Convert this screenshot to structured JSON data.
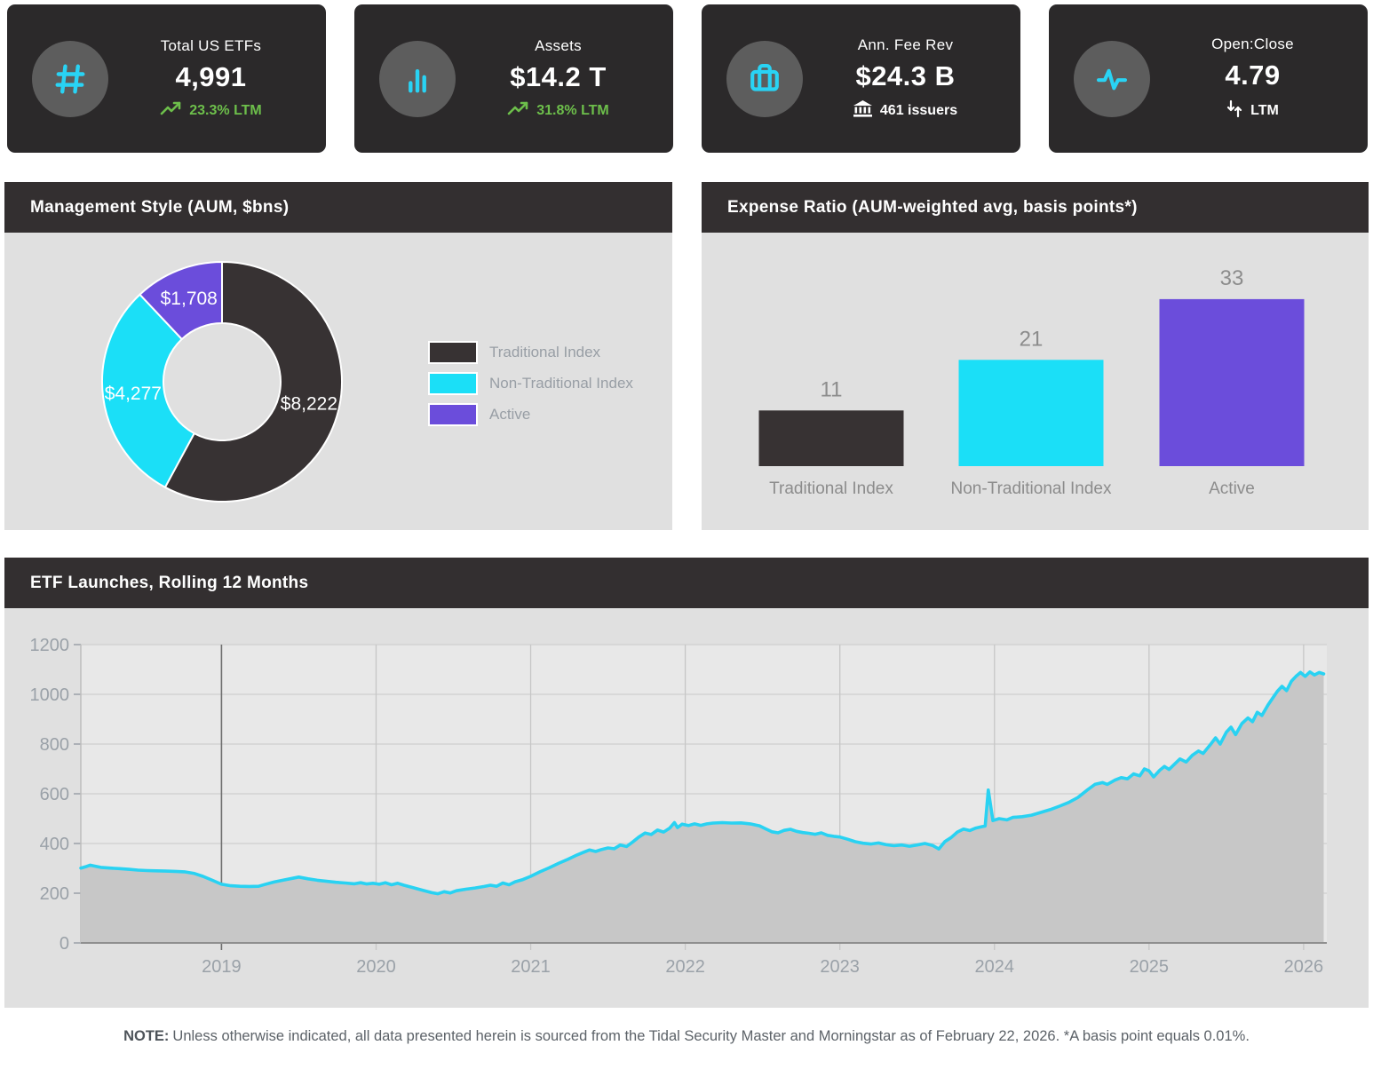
{
  "colors": {
    "card_bg": "#2b292a",
    "icon_circle": "#5d5d5d",
    "cyan_accent": "#29d3f4",
    "green_accent": "#6dbf4b",
    "panel_header_bg": "#332f30",
    "panel_body_bg": "#e0e0e0",
    "dark_series": "#373233",
    "cyan_series": "#1bdff7",
    "purple_series": "#6b4ddb",
    "axis_text": "#9aa1a8",
    "bar_label_text": "#8c8c8c"
  },
  "kpi_cards": [
    {
      "icon": "hash",
      "title": "Total US ETFs",
      "value": "4,991",
      "sub": "23.3% LTM",
      "sub_icon": "trending-up",
      "sub_style": "green"
    },
    {
      "icon": "bar-chart",
      "title": "Assets",
      "value": "$14.2 T",
      "sub": "31.8% LTM",
      "sub_icon": "trending-up",
      "sub_style": "green"
    },
    {
      "icon": "briefcase",
      "title": "Ann. Fee Rev",
      "value": "$24.3 B",
      "sub": "461 issuers",
      "sub_icon": "bank",
      "sub_style": "white"
    },
    {
      "icon": "activity",
      "title": "Open:Close",
      "value": "4.79",
      "sub": "LTM",
      "sub_icon": "arrows-vertical",
      "sub_style": "white"
    }
  ],
  "donut_panel": {
    "title": "Management Style (AUM, $bns)"
  },
  "bar_panel": {
    "title": "Expense Ratio (AUM-weighted avg, basis points*)"
  },
  "line_panel": {
    "title": "ETF Launches, Rolling 12 Months"
  },
  "note": {
    "label": "NOTE:",
    "text": "Unless otherwise indicated, all data presented herein is sourced from the Tidal Security Master and Morningstar as of February 22, 2026. *A basis point equals 0.01%."
  },
  "chart_data": [
    {
      "type": "pie",
      "donut": true,
      "title": "Management Style (AUM, $bns)",
      "labels": [
        "Traditional Index",
        "Non-Traditional Index",
        "Active"
      ],
      "values": [
        8222,
        4277,
        1708
      ],
      "value_labels": [
        "$8,222",
        "$4,277",
        "$1,708"
      ],
      "colors": [
        "#373233",
        "#1bdff7",
        "#6b4ddb"
      ],
      "legend_position": "right"
    },
    {
      "type": "bar",
      "title": "Expense Ratio (AUM-weighted avg, basis points*)",
      "categories": [
        "Traditional Index",
        "Non-Traditional Index",
        "Active"
      ],
      "values": [
        11,
        21,
        33
      ],
      "colors": [
        "#373233",
        "#1bdff7",
        "#6b4ddb"
      ],
      "ylim": [
        0,
        38
      ],
      "grid": false,
      "value_labels_shown": true
    },
    {
      "type": "area",
      "title": "ETF Launches, Rolling 12 Months",
      "xlabel": "",
      "ylabel": "",
      "ylim": [
        0,
        1200
      ],
      "yticks": [
        0,
        200,
        400,
        600,
        800,
        1000,
        1200
      ],
      "xticks": [
        2019,
        2020,
        2021,
        2022,
        2023,
        2024,
        2025,
        2026
      ],
      "xlim": [
        2018.09,
        2026.15
      ],
      "grid": true,
      "line_color": "#29d2f2",
      "fill_color": "#c7c7c7",
      "plot_bg": "#e8e8e8",
      "points": [
        [
          2018.09,
          301
        ],
        [
          2018.12,
          306
        ],
        [
          2018.15,
          313
        ],
        [
          2018.18,
          309
        ],
        [
          2018.22,
          304
        ],
        [
          2018.28,
          301
        ],
        [
          2018.34,
          299
        ],
        [
          2018.4,
          296
        ],
        [
          2018.46,
          293
        ],
        [
          2018.52,
          291
        ],
        [
          2018.58,
          290
        ],
        [
          2018.64,
          289
        ],
        [
          2018.7,
          288
        ],
        [
          2018.76,
          286
        ],
        [
          2018.82,
          280
        ],
        [
          2018.88,
          268
        ],
        [
          2018.94,
          252
        ],
        [
          2019.0,
          236
        ],
        [
          2019.06,
          230
        ],
        [
          2019.12,
          228
        ],
        [
          2019.18,
          227
        ],
        [
          2019.24,
          228
        ],
        [
          2019.28,
          235
        ],
        [
          2019.34,
          245
        ],
        [
          2019.4,
          253
        ],
        [
          2019.46,
          260
        ],
        [
          2019.5,
          265
        ],
        [
          2019.56,
          258
        ],
        [
          2019.62,
          252
        ],
        [
          2019.68,
          248
        ],
        [
          2019.74,
          244
        ],
        [
          2019.8,
          241
        ],
        [
          2019.86,
          238
        ],
        [
          2019.9,
          242
        ],
        [
          2019.94,
          237
        ],
        [
          2019.98,
          240
        ],
        [
          2020.02,
          236
        ],
        [
          2020.06,
          242
        ],
        [
          2020.1,
          234
        ],
        [
          2020.14,
          240
        ],
        [
          2020.18,
          232
        ],
        [
          2020.24,
          222
        ],
        [
          2020.3,
          212
        ],
        [
          2020.36,
          202
        ],
        [
          2020.4,
          198
        ],
        [
          2020.44,
          206
        ],
        [
          2020.48,
          201
        ],
        [
          2020.52,
          210
        ],
        [
          2020.58,
          216
        ],
        [
          2020.64,
          221
        ],
        [
          2020.7,
          227
        ],
        [
          2020.74,
          232
        ],
        [
          2020.78,
          228
        ],
        [
          2020.82,
          241
        ],
        [
          2020.86,
          234
        ],
        [
          2020.9,
          246
        ],
        [
          2020.95,
          255
        ],
        [
          2021.0,
          268
        ],
        [
          2021.06,
          286
        ],
        [
          2021.12,
          302
        ],
        [
          2021.18,
          320
        ],
        [
          2021.24,
          336
        ],
        [
          2021.3,
          354
        ],
        [
          2021.34,
          364
        ],
        [
          2021.38,
          374
        ],
        [
          2021.42,
          368
        ],
        [
          2021.46,
          376
        ],
        [
          2021.5,
          382
        ],
        [
          2021.54,
          379
        ],
        [
          2021.58,
          394
        ],
        [
          2021.62,
          388
        ],
        [
          2021.66,
          406
        ],
        [
          2021.7,
          426
        ],
        [
          2021.74,
          442
        ],
        [
          2021.78,
          436
        ],
        [
          2021.82,
          454
        ],
        [
          2021.86,
          446
        ],
        [
          2021.9,
          462
        ],
        [
          2021.93,
          484
        ],
        [
          2021.95,
          464
        ],
        [
          2021.98,
          478
        ],
        [
          2022.02,
          472
        ],
        [
          2022.06,
          479
        ],
        [
          2022.1,
          473
        ],
        [
          2022.14,
          479
        ],
        [
          2022.18,
          482
        ],
        [
          2022.24,
          484
        ],
        [
          2022.3,
          482
        ],
        [
          2022.36,
          483
        ],
        [
          2022.42,
          479
        ],
        [
          2022.48,
          471
        ],
        [
          2022.52,
          459
        ],
        [
          2022.56,
          447
        ],
        [
          2022.6,
          443
        ],
        [
          2022.64,
          453
        ],
        [
          2022.68,
          457
        ],
        [
          2022.72,
          449
        ],
        [
          2022.76,
          444
        ],
        [
          2022.8,
          441
        ],
        [
          2022.84,
          437
        ],
        [
          2022.88,
          443
        ],
        [
          2022.92,
          433
        ],
        [
          2022.96,
          429
        ],
        [
          2023.0,
          426
        ],
        [
          2023.05,
          417
        ],
        [
          2023.1,
          407
        ],
        [
          2023.15,
          401
        ],
        [
          2023.2,
          398
        ],
        [
          2023.25,
          402
        ],
        [
          2023.3,
          395
        ],
        [
          2023.35,
          391
        ],
        [
          2023.4,
          394
        ],
        [
          2023.45,
          389
        ],
        [
          2023.5,
          394
        ],
        [
          2023.55,
          400
        ],
        [
          2023.6,
          392
        ],
        [
          2023.64,
          378
        ],
        [
          2023.68,
          408
        ],
        [
          2023.72,
          424
        ],
        [
          2023.76,
          446
        ],
        [
          2023.8,
          458
        ],
        [
          2023.84,
          452
        ],
        [
          2023.88,
          462
        ],
        [
          2023.92,
          468
        ],
        [
          2023.94,
          470
        ],
        [
          2023.96,
          615
        ],
        [
          2023.99,
          492
        ],
        [
          2024.03,
          500
        ],
        [
          2024.08,
          495
        ],
        [
          2024.12,
          505
        ],
        [
          2024.18,
          508
        ],
        [
          2024.24,
          514
        ],
        [
          2024.3,
          525
        ],
        [
          2024.36,
          536
        ],
        [
          2024.42,
          550
        ],
        [
          2024.48,
          565
        ],
        [
          2024.54,
          585
        ],
        [
          2024.6,
          615
        ],
        [
          2024.65,
          638
        ],
        [
          2024.7,
          645
        ],
        [
          2024.73,
          638
        ],
        [
          2024.78,
          655
        ],
        [
          2024.82,
          665
        ],
        [
          2024.86,
          660
        ],
        [
          2024.9,
          680
        ],
        [
          2024.94,
          672
        ],
        [
          2024.97,
          700
        ],
        [
          2025.0,
          692
        ],
        [
          2025.03,
          668
        ],
        [
          2025.07,
          695
        ],
        [
          2025.1,
          710
        ],
        [
          2025.13,
          698
        ],
        [
          2025.17,
          722
        ],
        [
          2025.2,
          740
        ],
        [
          2025.24,
          728
        ],
        [
          2025.28,
          755
        ],
        [
          2025.32,
          772
        ],
        [
          2025.35,
          762
        ],
        [
          2025.4,
          800
        ],
        [
          2025.43,
          825
        ],
        [
          2025.46,
          800
        ],
        [
          2025.5,
          848
        ],
        [
          2025.53,
          868
        ],
        [
          2025.56,
          838
        ],
        [
          2025.6,
          882
        ],
        [
          2025.64,
          905
        ],
        [
          2025.67,
          890
        ],
        [
          2025.7,
          928
        ],
        [
          2025.73,
          915
        ],
        [
          2025.77,
          958
        ],
        [
          2025.8,
          985
        ],
        [
          2025.83,
          1012
        ],
        [
          2025.86,
          1032
        ],
        [
          2025.89,
          1015
        ],
        [
          2025.92,
          1052
        ],
        [
          2025.95,
          1072
        ],
        [
          2025.98,
          1088
        ],
        [
          2026.01,
          1072
        ],
        [
          2026.04,
          1090
        ],
        [
          2026.07,
          1078
        ],
        [
          2026.1,
          1088
        ],
        [
          2026.13,
          1082
        ]
      ]
    }
  ]
}
